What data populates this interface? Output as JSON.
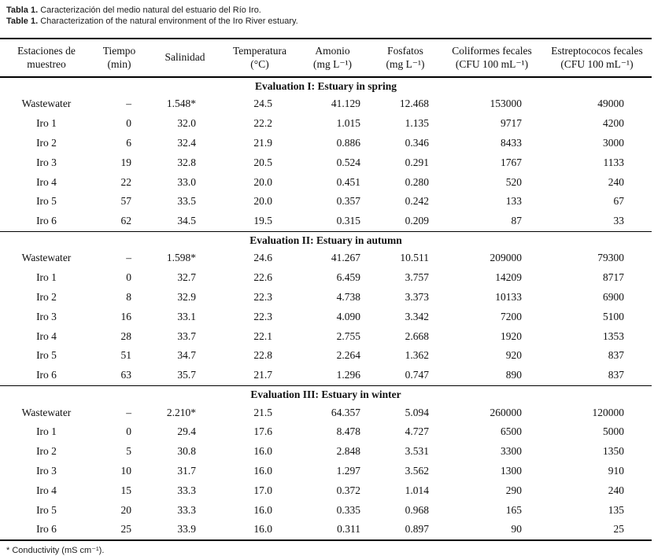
{
  "caption": {
    "es_label": "Tabla 1.",
    "es_text": "Caracterización del medio natural del estuario del Río Iro.",
    "en_label": "Table 1.",
    "en_text": "Characterization of the natural environment of the Iro River estuary."
  },
  "columns": [
    {
      "id": "stations",
      "line1": "Estaciones de",
      "line2": "muestreo"
    },
    {
      "id": "time",
      "line1": "Tiempo",
      "line2": "(min)"
    },
    {
      "id": "salinity",
      "line1": "Salinidad",
      "line2": ""
    },
    {
      "id": "temperature",
      "line1": "Temperatura",
      "line2": "(°C)"
    },
    {
      "id": "ammonium",
      "line1": "Amonio",
      "line2": "(mg L⁻¹)"
    },
    {
      "id": "phosphates",
      "line1": "Fosfatos",
      "line2": "(mg L⁻¹)"
    },
    {
      "id": "fecal_coliforms",
      "line1": "Coliformes fecales",
      "line2": "(CFU 100 mL⁻¹)"
    },
    {
      "id": "fecal_streptococci",
      "line1": "Estreptococos fecales",
      "line2": "(CFU 100 mL⁻¹)"
    }
  ],
  "sections": [
    {
      "title": "Evaluation I: Estuary in spring",
      "rows": [
        [
          "Wastewater",
          "–",
          "1.548*",
          "24.5",
          "41.129",
          "12.468",
          "153000",
          "49000"
        ],
        [
          "Iro 1",
          "0",
          "32.0",
          "22.2",
          "1.015",
          "1.135",
          "9717",
          "4200"
        ],
        [
          "Iro 2",
          "6",
          "32.4",
          "21.9",
          "0.886",
          "0.346",
          "8433",
          "3000"
        ],
        [
          "Iro 3",
          "19",
          "32.8",
          "20.5",
          "0.524",
          "0.291",
          "1767",
          "1133"
        ],
        [
          "Iro 4",
          "22",
          "33.0",
          "20.0",
          "0.451",
          "0.280",
          "520",
          "240"
        ],
        [
          "Iro 5",
          "57",
          "33.5",
          "20.0",
          "0.357",
          "0.242",
          "133",
          "67"
        ],
        [
          "Iro 6",
          "62",
          "34.5",
          "19.5",
          "0.315",
          "0.209",
          "87",
          "33"
        ]
      ]
    },
    {
      "title": "Evaluation II: Estuary in autumn",
      "rows": [
        [
          "Wastewater",
          "–",
          "1.598*",
          "24.6",
          "41.267",
          "10.511",
          "209000",
          "79300"
        ],
        [
          "Iro 1",
          "0",
          "32.7",
          "22.6",
          "6.459",
          "3.757",
          "14209",
          "8717"
        ],
        [
          "Iro 2",
          "8",
          "32.9",
          "22.3",
          "4.738",
          "3.373",
          "10133",
          "6900"
        ],
        [
          "Iro 3",
          "16",
          "33.1",
          "22.3",
          "4.090",
          "3.342",
          "7200",
          "5100"
        ],
        [
          "Iro 4",
          "28",
          "33.7",
          "22.1",
          "2.755",
          "2.668",
          "1920",
          "1353"
        ],
        [
          "Iro 5",
          "51",
          "34.7",
          "22.8",
          "2.264",
          "1.362",
          "920",
          "837"
        ],
        [
          "Iro 6",
          "63",
          "35.7",
          "21.7",
          "1.296",
          "0.747",
          "890",
          "837"
        ]
      ]
    },
    {
      "title": "Evaluation III: Estuary in winter",
      "rows": [
        [
          "Wastewater",
          "–",
          "2.210*",
          "21.5",
          "64.357",
          "5.094",
          "260000",
          "120000"
        ],
        [
          "Iro 1",
          "0",
          "29.4",
          "17.6",
          "8.478",
          "4.727",
          "6500",
          "5000"
        ],
        [
          "Iro 2",
          "5",
          "30.8",
          "16.0",
          "2.848",
          "3.531",
          "3300",
          "1350"
        ],
        [
          "Iro 3",
          "10",
          "31.7",
          "16.0",
          "1.297",
          "3.562",
          "1300",
          "910"
        ],
        [
          "Iro 4",
          "15",
          "33.3",
          "17.0",
          "0.372",
          "1.014",
          "290",
          "240"
        ],
        [
          "Iro 5",
          "20",
          "33.3",
          "16.0",
          "0.335",
          "0.968",
          "165",
          "135"
        ],
        [
          "Iro 6",
          "25",
          "33.9",
          "16.0",
          "0.311",
          "0.897",
          "90",
          "25"
        ]
      ]
    }
  ],
  "footnote": "* Conductivity (mS cm⁻¹)."
}
